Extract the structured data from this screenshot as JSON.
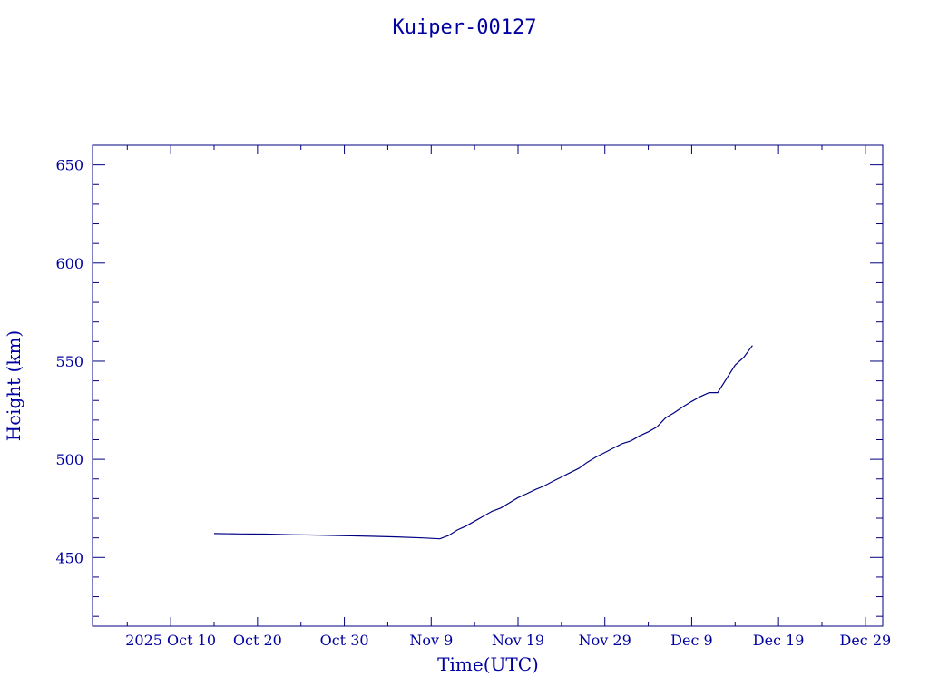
{
  "chart_data": {
    "type": "line",
    "title": "Kuiper-00127",
    "xlabel": "Time(UTC)",
    "ylabel": "Height (km)",
    "grid": false,
    "legend": "none",
    "x_axis": {
      "kind": "date",
      "range": [
        "2025-10-01",
        "2025-12-31"
      ],
      "major_ticks": [
        {
          "date": "2025-10-10",
          "label": "2025 Oct 10"
        },
        {
          "date": "2025-10-20",
          "label": "Oct 20"
        },
        {
          "date": "2025-10-30",
          "label": "Oct 30"
        },
        {
          "date": "2025-11-09",
          "label": "Nov  9"
        },
        {
          "date": "2025-11-19",
          "label": "Nov 19"
        },
        {
          "date": "2025-11-29",
          "label": "Nov 29"
        },
        {
          "date": "2025-12-09",
          "label": "Dec  9"
        },
        {
          "date": "2025-12-19",
          "label": "Dec 19"
        },
        {
          "date": "2025-12-29",
          "label": "Dec 29"
        }
      ],
      "minor_ticks_per_major": 2
    },
    "y_axis": {
      "range": [
        415,
        660
      ],
      "major_ticks": [
        450,
        500,
        550,
        600,
        650
      ],
      "minor_step": 10
    },
    "colors": {
      "axis": "#000080",
      "line": "#000080",
      "text": "#0000a0"
    },
    "series": [
      {
        "x": [
          "2025-10-15",
          "2025-10-18",
          "2025-10-21",
          "2025-10-24",
          "2025-10-27",
          "2025-10-30",
          "2025-11-02",
          "2025-11-05",
          "2025-11-08",
          "2025-11-10",
          "2025-11-11",
          "2025-11-12",
          "2025-11-13",
          "2025-11-14",
          "2025-11-15",
          "2025-11-16",
          "2025-11-17",
          "2025-11-18",
          "2025-11-19",
          "2025-11-20",
          "2025-11-21",
          "2025-11-22",
          "2025-11-23",
          "2025-11-24",
          "2025-11-25",
          "2025-11-26",
          "2025-11-27",
          "2025-11-28",
          "2025-11-29",
          "2025-11-30",
          "2025-12-01",
          "2025-12-02",
          "2025-12-03",
          "2025-12-04",
          "2025-12-05",
          "2025-12-06",
          "2025-12-07",
          "2025-12-08",
          "2025-12-09",
          "2025-12-10",
          "2025-12-11",
          "2025-12-12",
          "2025-12-13",
          "2025-12-14",
          "2025-12-15",
          "2025-12-16"
        ],
        "y": [
          462.2,
          462.0,
          461.9,
          461.6,
          461.4,
          461.1,
          460.8,
          460.5,
          460.0,
          459.5,
          461.2,
          464.0,
          466.0,
          468.5,
          471.0,
          473.5,
          475.2,
          477.8,
          480.5,
          482.5,
          484.6,
          486.4,
          488.8,
          491.0,
          493.2,
          495.4,
          498.6,
          501.2,
          503.5,
          505.8,
          508.0,
          509.4,
          512.0,
          514.0,
          516.5,
          521.2,
          523.8,
          526.8,
          529.5,
          532.0,
          534.0,
          534.0,
          541.0,
          548.0,
          552.0,
          558.0
        ]
      }
    ]
  }
}
